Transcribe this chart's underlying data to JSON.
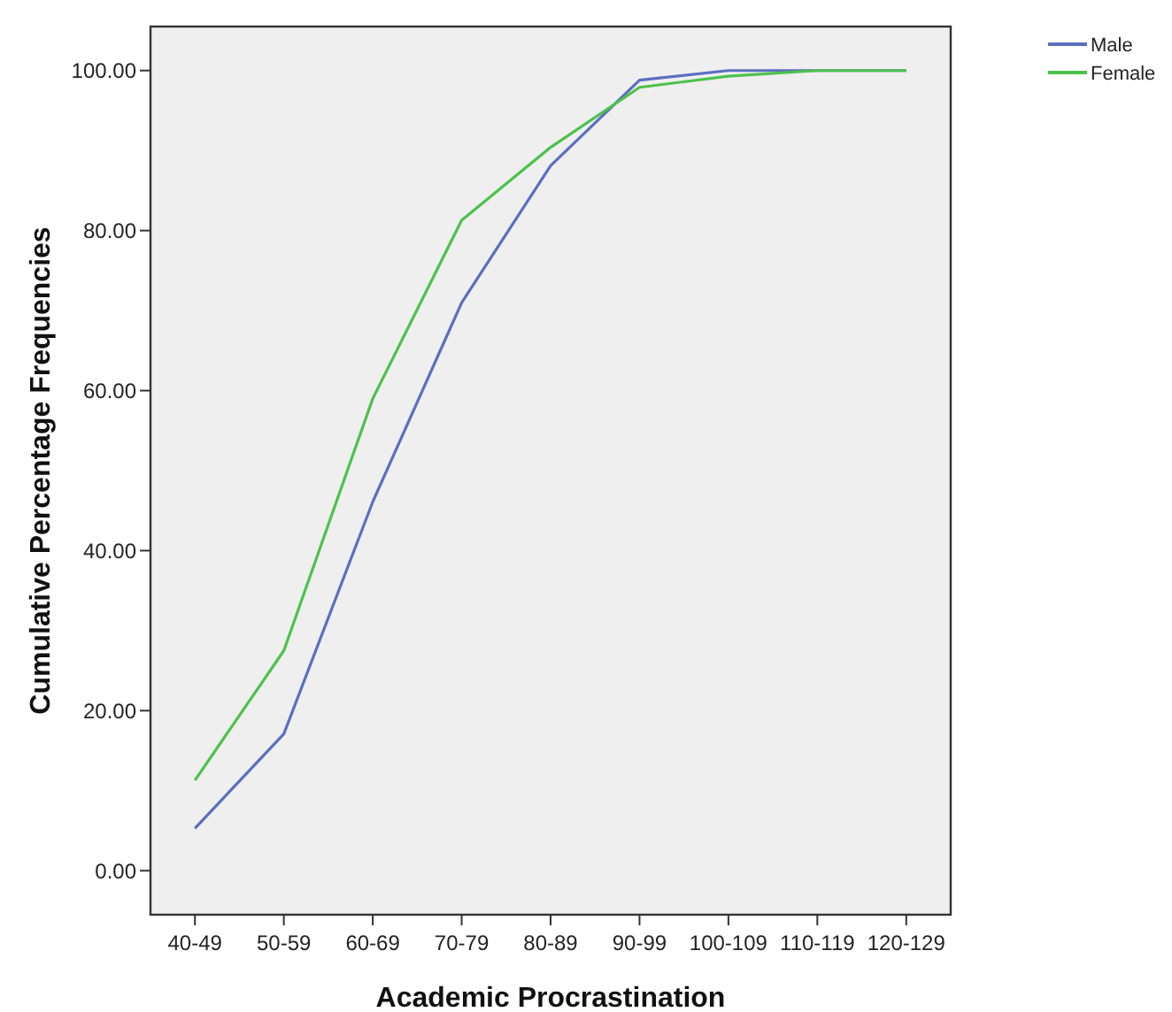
{
  "chart_data": {
    "type": "line",
    "xlabel": "Academic Procrastination",
    "ylabel": "Cumulative Percentage Frequencies",
    "categories": [
      "40-49",
      "50-59",
      "60-69",
      "70-79",
      "80-89",
      "90-99",
      "100-109",
      "110-119",
      "120-129"
    ],
    "series": [
      {
        "name": "Male",
        "color": "#5b6fc0",
        "values": [
          5.3,
          17.1,
          46.1,
          71.0,
          88.1,
          98.8,
          100,
          100,
          100
        ]
      },
      {
        "name": "Female",
        "color": "#4cc24c",
        "values": [
          11.3,
          27.5,
          59.0,
          81.3,
          90.4,
          97.9,
          99.3,
          100,
          100
        ]
      }
    ],
    "ylim": [
      -5.5,
      105.5
    ],
    "yticks": [
      {
        "value": 0,
        "label": "0.00"
      },
      {
        "value": 20,
        "label": "20.00"
      },
      {
        "value": 40,
        "label": "40.00"
      },
      {
        "value": 60,
        "label": "60.00"
      },
      {
        "value": 80,
        "label": "80.00"
      },
      {
        "value": 100,
        "label": "100.00"
      }
    ],
    "grid": false,
    "legend": "top right",
    "marker": "none",
    "line_style": "solid"
  }
}
